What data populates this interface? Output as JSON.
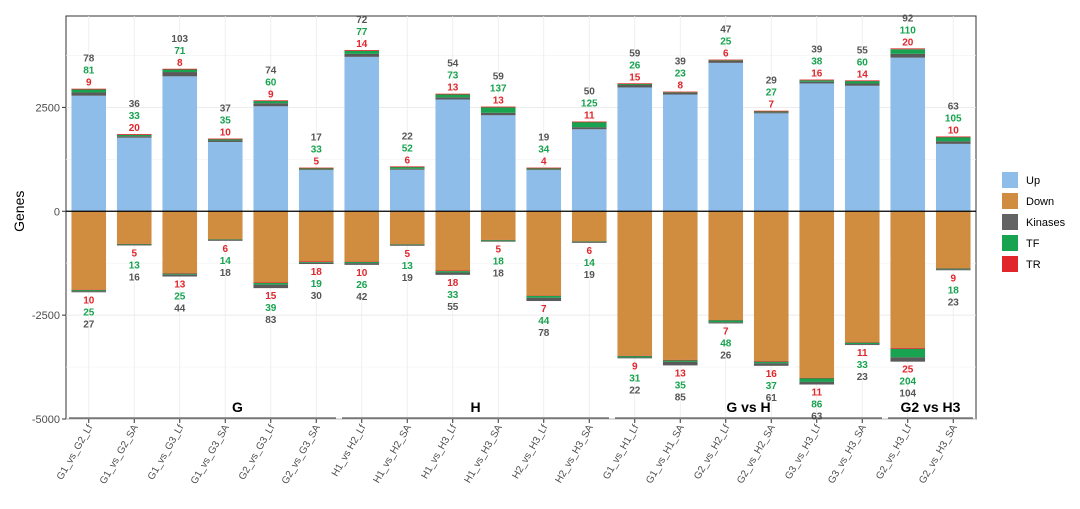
{
  "chart_data": {
    "type": "bar",
    "ylabel": "Genes",
    "ylim": [
      -5000,
      4700
    ],
    "yticks": [
      -5000,
      -2500,
      0,
      2500
    ],
    "ytick_labels": [
      "-5000",
      "-2500",
      "0",
      "2500"
    ],
    "categories": [
      "G1_vs_G2_Lf",
      "G1_vs_G2_SA",
      "G1_vs_G3_Lf",
      "G1_vs_G3_SA",
      "G2_vs_G3_Lf",
      "G2_vs_G3_SA",
      "H1_vs H2_Lf",
      "H1_vs_H2_SA",
      "H1_vs_H3_Lf",
      "H1_vs_H3_SA",
      "H2_vs_H3_Lf",
      "H2_vs_H3_SA",
      "G1_vs_H1_Lf",
      "G1_vs_H1_SA",
      "G2_vs_H2_Lf",
      "G2_vs_H2_SA",
      "G3_vs_H3_Lf",
      "G3_vs_H3_SA",
      "G2_vs_H3_Lf",
      "G2_vs_H3_SA"
    ],
    "series": [
      {
        "name": "Up",
        "color": "#8dbde8",
        "values": [
          2950,
          1860,
          3430,
          1750,
          2670,
          1050,
          3880,
          1080,
          2830,
          2520,
          1050,
          2160,
          3080,
          2880,
          3650,
          2420,
          3170,
          3150,
          3920,
          1800
        ]
      },
      {
        "name": "Down",
        "color": "#d08c3f",
        "values": [
          -1950,
          -820,
          -1570,
          -710,
          -1850,
          -1270,
          -1290,
          -830,
          -1530,
          -730,
          -2160,
          -760,
          -3540,
          -3710,
          -2700,
          -3720,
          -4170,
          -3220,
          -3620,
          -1420
        ]
      }
    ],
    "annotations": {
      "up": {
        "Kinases": [
          78,
          36,
          103,
          37,
          74,
          17,
          72,
          22,
          54,
          59,
          19,
          50,
          59,
          39,
          47,
          29,
          39,
          55,
          92,
          63
        ],
        "TF": [
          81,
          33,
          71,
          35,
          60,
          33,
          77,
          52,
          73,
          137,
          34,
          125,
          26,
          23,
          25,
          27,
          38,
          60,
          110,
          105
        ],
        "TR": [
          9,
          20,
          8,
          10,
          9,
          5,
          14,
          6,
          13,
          13,
          4,
          11,
          15,
          8,
          6,
          7,
          16,
          14,
          20,
          10
        ]
      },
      "down": {
        "TR": [
          10,
          5,
          13,
          6,
          15,
          18,
          10,
          5,
          18,
          5,
          7,
          6,
          9,
          13,
          7,
          16,
          11,
          11,
          25,
          9
        ],
        "TF": [
          25,
          13,
          25,
          14,
          39,
          19,
          26,
          13,
          33,
          18,
          44,
          14,
          31,
          35,
          48,
          37,
          86,
          33,
          204,
          18
        ],
        "Kinases": [
          27,
          16,
          44,
          18,
          83,
          30,
          42,
          19,
          55,
          18,
          78,
          19,
          22,
          85,
          26,
          61,
          63,
          23,
          104,
          23
        ]
      }
    },
    "groups": [
      {
        "label": "G",
        "start": 0,
        "end": 5
      },
      {
        "label": "H",
        "start": 6,
        "end": 11
      },
      {
        "label": "G vs H",
        "start": 12,
        "end": 17
      },
      {
        "label": "G2 vs H3",
        "start": 18,
        "end": 19
      }
    ],
    "legend": {
      "position": "right",
      "items": [
        {
          "name": "Up",
          "color": "#8dbde8"
        },
        {
          "name": "Down",
          "color": "#d08c3f"
        },
        {
          "name": "Kinases",
          "color": "#636363"
        },
        {
          "name": "TF",
          "color": "#17a34f"
        },
        {
          "name": "TR",
          "color": "#e0262b"
        }
      ]
    }
  }
}
